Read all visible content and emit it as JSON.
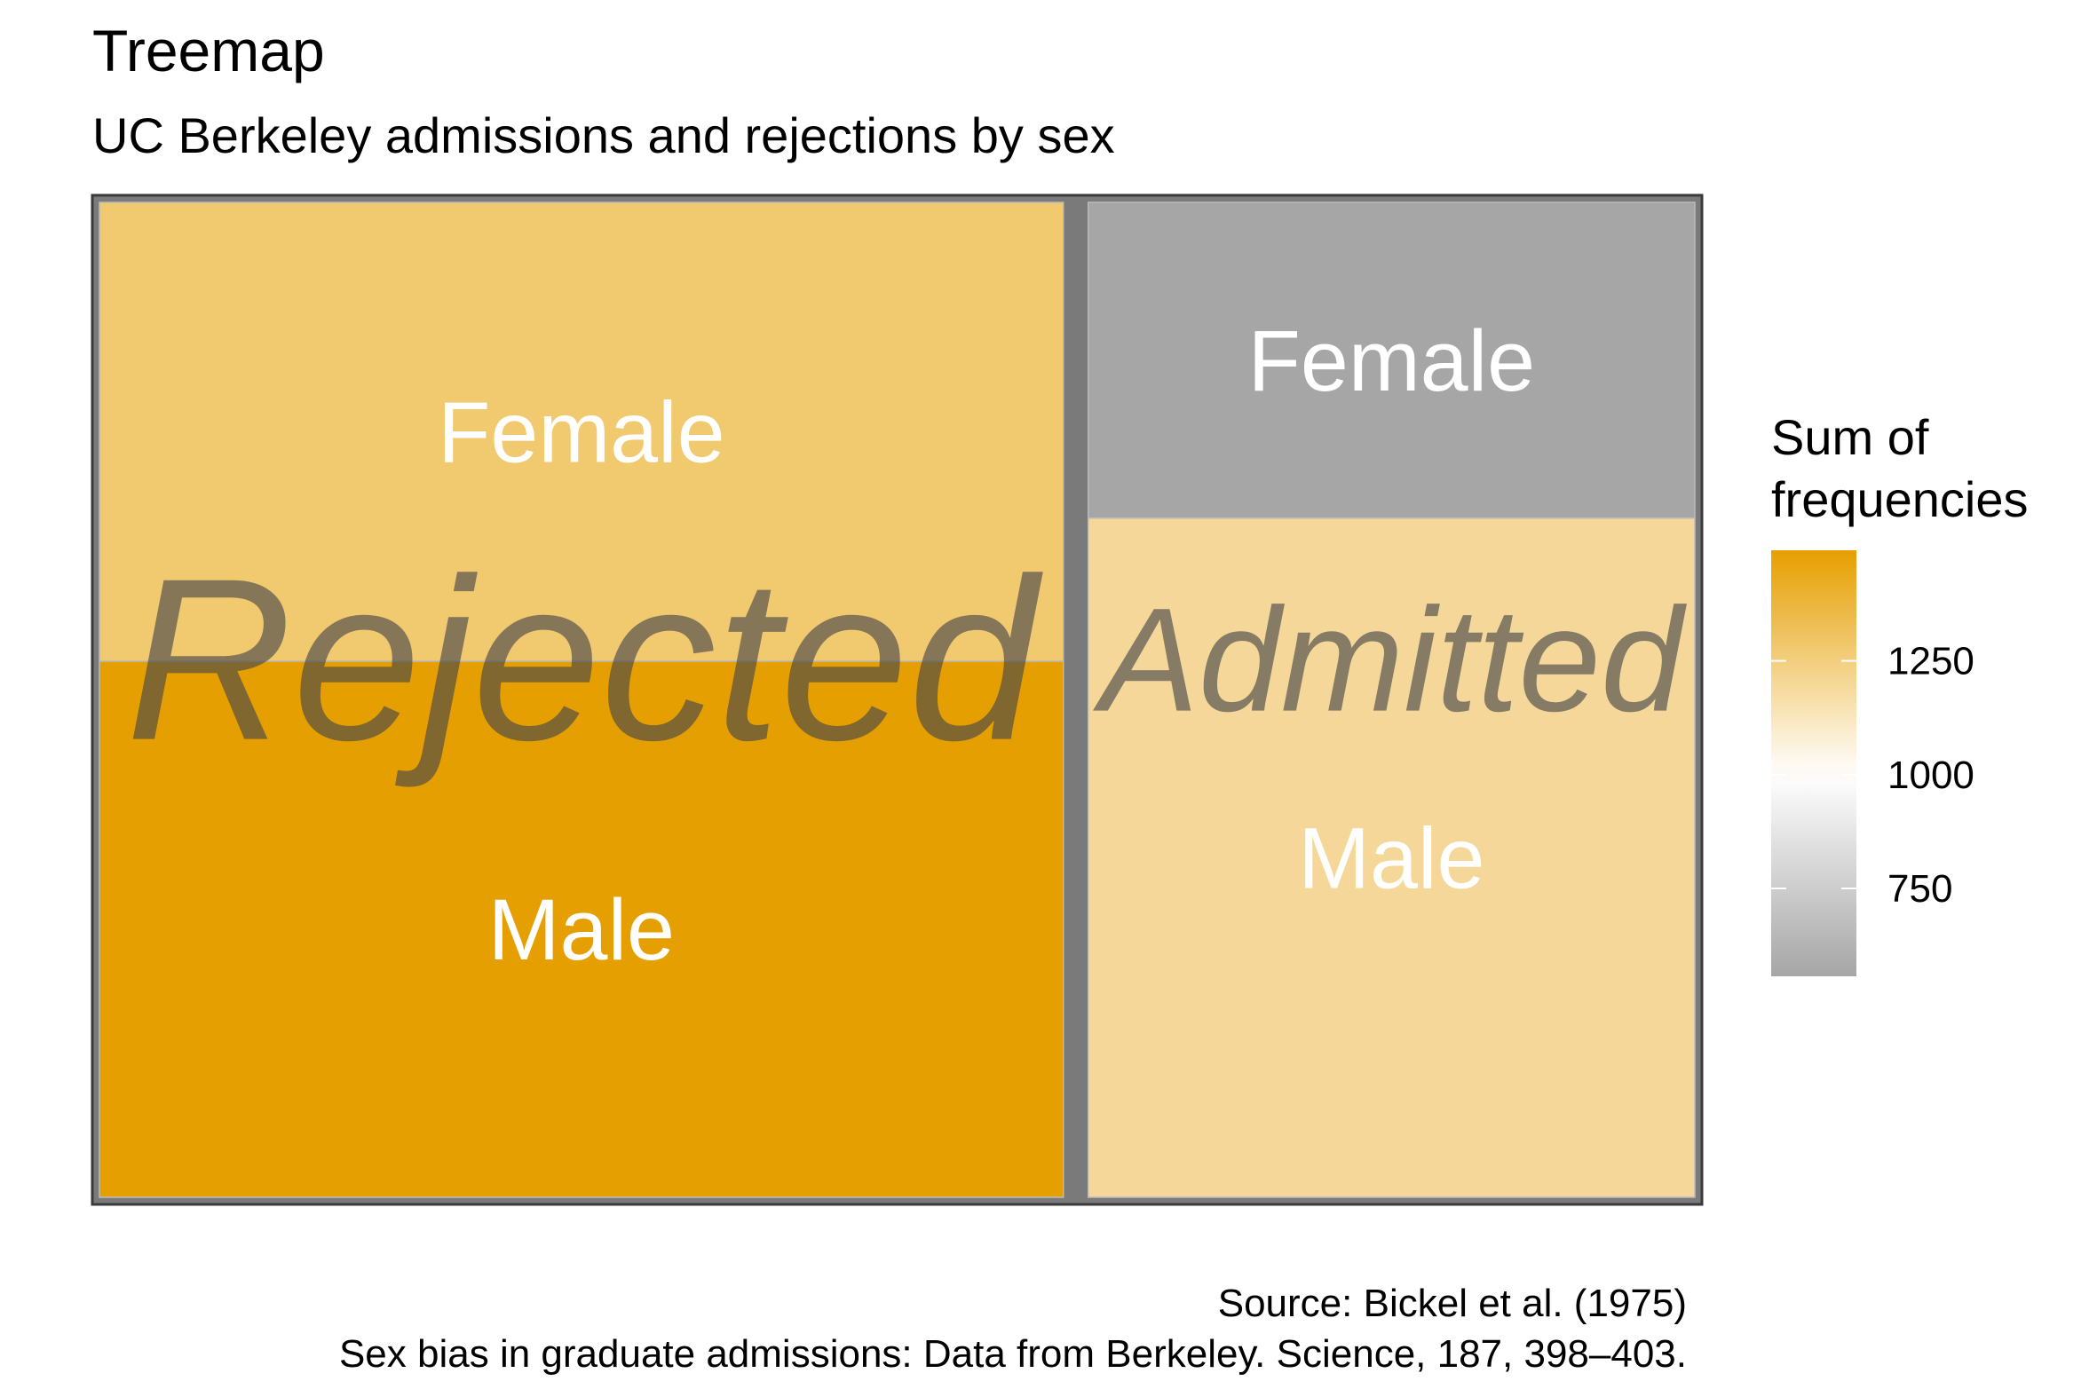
{
  "chart_data": {
    "type": "treemap",
    "title": "Treemap",
    "subtitle": "UC Berkeley admissions and rejections by sex",
    "groups": [
      {
        "name": "Rejected",
        "tiles": [
          {
            "label": "Female",
            "value": 1278
          },
          {
            "label": "Male",
            "value": 1493
          }
        ]
      },
      {
        "name": "Admitted",
        "tiles": [
          {
            "label": "Female",
            "value": 557
          },
          {
            "label": "Male",
            "value": 1198
          }
        ]
      }
    ],
    "legend": {
      "title_line1": "Sum of",
      "title_line2": "frequencies",
      "ticks": [
        {
          "value": 1250,
          "label": "1250"
        },
        {
          "value": 1000,
          "label": "1000"
        },
        {
          "value": 750,
          "label": "750"
        }
      ],
      "range": [
        557,
        1493
      ],
      "colors": {
        "low": "#A6A6A6",
        "mid": "#FFFFFF",
        "high": "#E69F00"
      },
      "midpoint": 1000,
      "position": "right"
    },
    "caption_line1": "Source: Bickel et al. (1975)",
    "caption_line2": "Sex bias in graduate admissions: Data from Berkeley. Science, 187, 398–403."
  }
}
